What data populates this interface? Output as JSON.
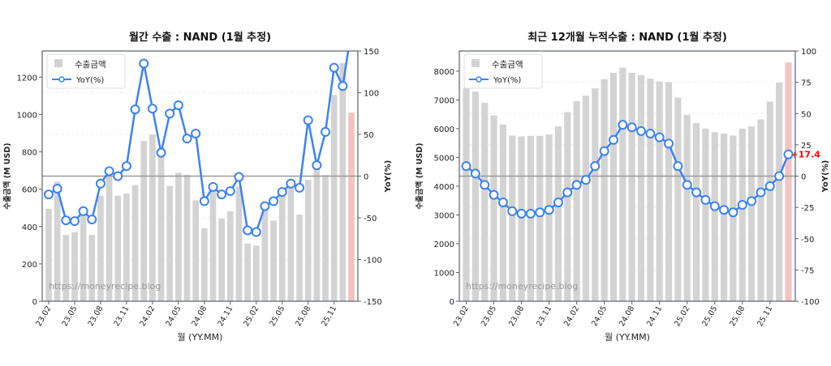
{
  "chart_data": [
    {
      "type": "bar",
      "title": "월간 수출 : NAND (1월 추정)",
      "xlabel": "월 (YY.MM)",
      "ylabel": "수출금액 (M USD)",
      "y2label": "YoY(%)",
      "ylim": [
        0,
        1340
      ],
      "y2lim": [
        -150,
        150
      ],
      "yticks": [
        0,
        200,
        400,
        600,
        800,
        1000,
        1200
      ],
      "y2ticks": [
        -150,
        -100,
        -50,
        0,
        50,
        100,
        150
      ],
      "xtick_labels": [
        "23.02",
        "23.05",
        "23.08",
        "23.11",
        "24.02",
        "24.05",
        "24.08",
        "24.11",
        "25.02",
        "25.05",
        "25.08",
        "25.11"
      ],
      "categories": [
        "23.02",
        "23.03",
        "23.04",
        "23.05",
        "23.06",
        "23.07",
        "23.08",
        "23.09",
        "23.10",
        "23.11",
        "23.12",
        "24.01",
        "24.02",
        "24.03",
        "24.04",
        "24.05",
        "24.06",
        "24.07",
        "24.08",
        "24.09",
        "24.10",
        "24.11",
        "24.12",
        "25.01",
        "25.02",
        "25.03",
        "25.04",
        "25.05",
        "25.06",
        "25.07",
        "25.08",
        "25.09",
        "25.10",
        "25.11",
        "25.12",
        "26.01"
      ],
      "series": [
        {
          "name": "수출금액",
          "type": "bar",
          "values": [
            495,
            640,
            355,
            370,
            460,
            355,
            565,
            673,
            565,
            576,
            622,
            858,
            893,
            820,
            618,
            688,
            677,
            540,
            391,
            600,
            442,
            482,
            615,
            309,
            298,
            510,
            432,
            590,
            630,
            464,
            650,
            716,
            676,
            1105,
            1275,
            1010
          ],
          "estimate_last": true
        },
        {
          "name": "YoY(%)",
          "type": "line",
          "values": [
            -22,
            -15,
            -53,
            -54,
            -42,
            -52,
            -9,
            6,
            0,
            12,
            80,
            135,
            81,
            28,
            75,
            85,
            45,
            51,
            -30,
            -13,
            -22,
            -18,
            -1,
            -65,
            -67,
            -36,
            -30,
            -19,
            -9,
            -14,
            67,
            13,
            53,
            130,
            108,
            175
          ]
        }
      ],
      "legend": [
        "수출금액",
        "YoY(%)"
      ],
      "legend_position": "upper left",
      "annotation": "https://moneyrecipe.blog",
      "grid": true
    },
    {
      "type": "bar",
      "title": "최근 12개월 누적수출 : NAND (1월 추정)",
      "xlabel": "월 (YY.MM)",
      "ylabel": "수출금액 (M USD)",
      "y2label": "YoY(%)",
      "ylim": [
        0,
        8700
      ],
      "y2lim": [
        -100,
        100
      ],
      "yticks": [
        0,
        1000,
        2000,
        3000,
        4000,
        5000,
        6000,
        7000,
        8000
      ],
      "y2ticks": [
        -100,
        -75,
        -50,
        -25,
        0,
        25,
        50,
        75,
        100
      ],
      "xtick_labels": [
        "23.02",
        "23.05",
        "23.08",
        "23.11",
        "24.02",
        "24.05",
        "24.08",
        "24.11",
        "25.02",
        "25.05",
        "25.08",
        "25.11"
      ],
      "categories": [
        "23.02",
        "23.03",
        "23.04",
        "23.05",
        "23.06",
        "23.07",
        "23.08",
        "23.09",
        "23.10",
        "23.11",
        "23.12",
        "24.01",
        "24.02",
        "24.03",
        "24.04",
        "24.05",
        "24.06",
        "24.07",
        "24.08",
        "24.09",
        "24.10",
        "24.11",
        "24.12",
        "25.01",
        "25.02",
        "25.03",
        "25.04",
        "25.05",
        "25.06",
        "25.07",
        "25.08",
        "25.09",
        "25.10",
        "25.11",
        "25.12",
        "26.01"
      ],
      "series": [
        {
          "name": "수출금액",
          "type": "bar",
          "values": [
            7400,
            7290,
            6900,
            6460,
            6150,
            5760,
            5730,
            5750,
            5750,
            5800,
            6080,
            6580,
            6960,
            7150,
            7400,
            7720,
            7940,
            8120,
            7940,
            7860,
            7740,
            7640,
            7620,
            7080,
            6480,
            6200,
            6000,
            5880,
            5830,
            5760,
            6000,
            6080,
            6320,
            6940,
            7600,
            8300
          ]
        },
        {
          "name": "YoY(%)",
          "type": "line",
          "values": [
            8,
            2,
            -7,
            -15,
            -21,
            -28,
            -30,
            -30,
            -29,
            -27,
            -21,
            -13,
            -7,
            -3,
            8,
            20,
            29,
            41,
            39,
            36,
            34,
            31,
            26,
            8,
            -7,
            -13,
            -19,
            -24,
            -27,
            -29,
            -23,
            -20,
            -13,
            -8,
            0,
            17.4
          ]
        }
      ],
      "last_label": "+17.4",
      "legend": [
        "수출금액",
        "YoY(%)"
      ],
      "legend_position": "upper left",
      "annotation": "https://moneyrecipe.blog",
      "grid": true
    }
  ],
  "charts": [
    {
      "title": "월간 수출 : NAND (1월 추정)",
      "xlabel": "월 (YY.MM)",
      "ylabel": "수출금액 (M USD)",
      "y2label": "YoY(%)",
      "legend_bar": "수출금액",
      "legend_line": "YoY(%)",
      "watermark": "https://moneyrecipe.blog"
    },
    {
      "title": "최근 12개월 누적수출 : NAND (1월 추정)",
      "xlabel": "월 (YY.MM)",
      "ylabel": "수출금액 (M USD)",
      "y2label": "YoY(%)",
      "legend_bar": "수출금액",
      "legend_line": "YoY(%)",
      "watermark": "https://moneyrecipe.blog",
      "last_label": "+17.4"
    }
  ],
  "colors": {
    "bar": "#d3d3d3",
    "bar_estimate": "#f4c2c2",
    "line": "#3b82f6",
    "zero_line": "#999999",
    "label_red": "#ff0000",
    "axis": "#5a6270"
  }
}
